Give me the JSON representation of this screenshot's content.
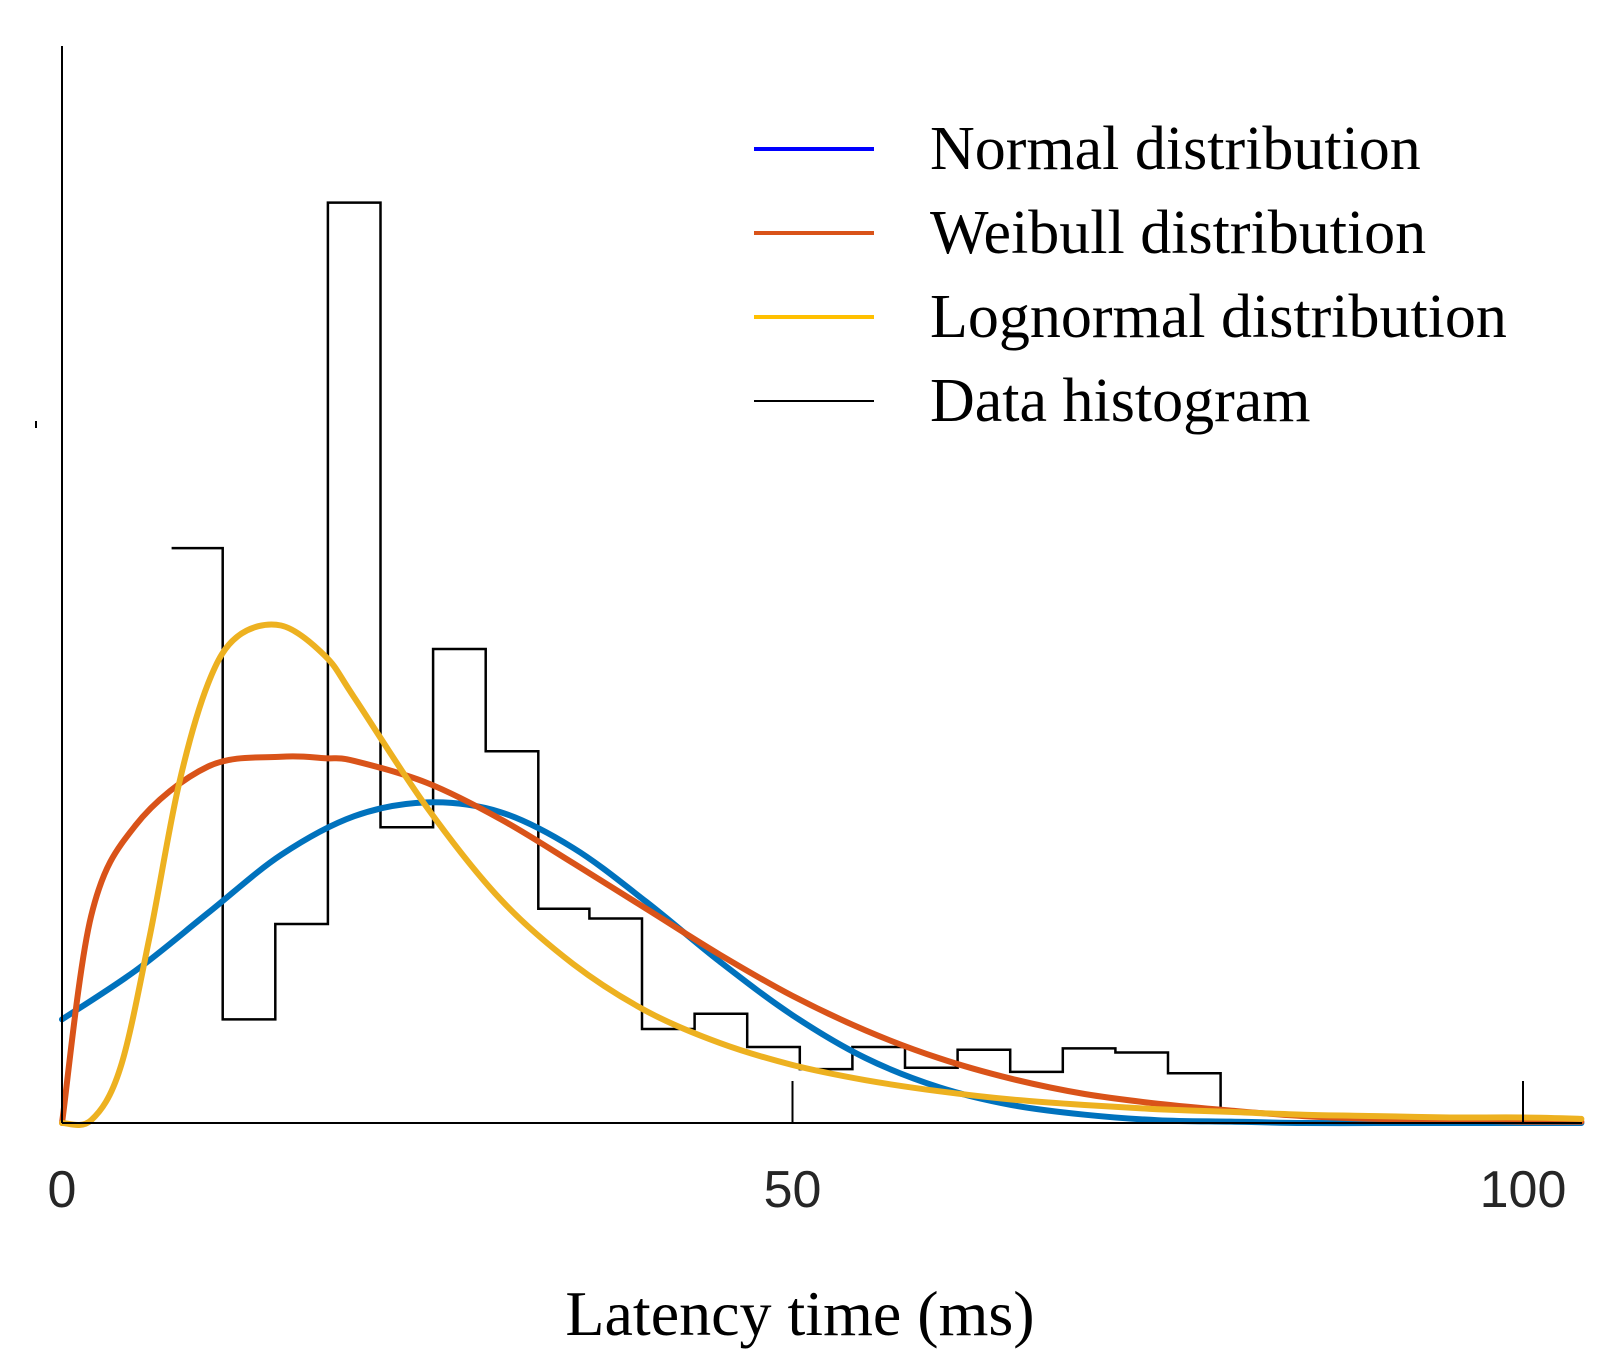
{
  "chart_data": {
    "type": "histogram",
    "title": "",
    "xlabel": "Latency time (ms)",
    "ylabel": "",
    "xlim": [
      0,
      104
    ],
    "ylim": [
      0,
      0.072
    ],
    "xticks": [
      0,
      50,
      100
    ],
    "xtick_labels": [
      "0",
      "50",
      "100"
    ],
    "grid": false,
    "legend_position": "top-right",
    "histogram": {
      "name": "Data histogram",
      "color": "#000000",
      "bin_edges": [
        7.5,
        11,
        14.6,
        18.2,
        21.8,
        25.4,
        29,
        32.6,
        36.1,
        39.7,
        43.3,
        46.9,
        50.5,
        54.1,
        57.7,
        61.3,
        64.9,
        68.5,
        72.1,
        75.7,
        79.3,
        82.9
      ],
      "values": [
        0.0416,
        0.0075,
        0.0144,
        0.0666,
        0.0214,
        0.0343,
        0.0269,
        0.0155,
        0.0148,
        0.0068,
        0.0079,
        0.0055,
        0.0039,
        0.0055,
        0.004,
        0.0053,
        0.0037,
        0.0054,
        0.0051,
        0.0036,
        0.0007
      ]
    },
    "series": [
      {
        "name": "Normal distribution",
        "color": "#0072BD",
        "legend_color": "#0000FF",
        "x": [
          0,
          5,
          10,
          15,
          20,
          25,
          30,
          35,
          40,
          45,
          50,
          55,
          60,
          65,
          70,
          75,
          80,
          85,
          90,
          95,
          100,
          104
        ],
        "values": [
          0.0075,
          0.011,
          0.0152,
          0.0194,
          0.0222,
          0.0232,
          0.0225,
          0.0199,
          0.016,
          0.0117,
          0.0078,
          0.0047,
          0.0026,
          0.0013,
          0.0006,
          0.0002,
          0.0001,
          0,
          0,
          0,
          0,
          0
        ]
      },
      {
        "name": "Weibull distribution",
        "color": "#D95319",
        "legend_color": "#D95319",
        "x": [
          0,
          2,
          5,
          10,
          15,
          18,
          20,
          25,
          30,
          35,
          40,
          45,
          50,
          55,
          60,
          65,
          70,
          75,
          80,
          85,
          90,
          95,
          100,
          104
        ],
        "values": [
          0,
          0.015,
          0.0215,
          0.0258,
          0.0265,
          0.0264,
          0.0262,
          0.0246,
          0.022,
          0.0188,
          0.0155,
          0.0122,
          0.0092,
          0.0067,
          0.0047,
          0.0032,
          0.0021,
          0.0014,
          0.0009,
          0.0005,
          0.0003,
          0.0002,
          0.0001,
          0.0001
        ]
      },
      {
        "name": "Lognormal distribution",
        "color": "#EDB120",
        "legend_color": "#FFC000",
        "x": [
          0,
          2,
          4,
          6,
          8,
          10,
          12,
          15,
          18,
          20,
          25,
          30,
          35,
          40,
          45,
          50,
          55,
          60,
          65,
          70,
          75,
          80,
          85,
          90,
          95,
          100,
          104
        ],
        "values": [
          0,
          0.0002,
          0.004,
          0.0135,
          0.0245,
          0.0318,
          0.0352,
          0.036,
          0.0338,
          0.0308,
          0.0228,
          0.0162,
          0.0115,
          0.0081,
          0.0058,
          0.0042,
          0.0031,
          0.0023,
          0.0017,
          0.0013,
          0.001,
          0.0008,
          0.0006,
          0.0005,
          0.0004,
          0.0004,
          0.0003
        ]
      }
    ],
    "legend_entries": [
      "Normal distribution",
      "Weibull distribution",
      "Lognormal distribution",
      "Data histogram"
    ]
  }
}
